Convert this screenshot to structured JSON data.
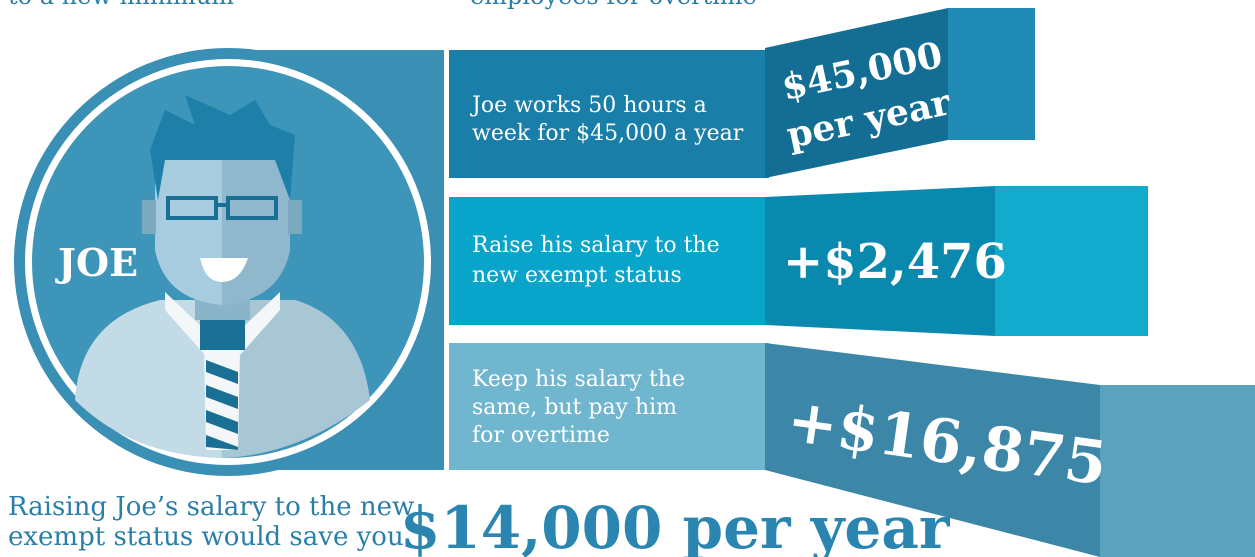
{
  "header": {
    "left_fragment": "to a new minimum",
    "center_fragment": "employees for overtime"
  },
  "person": {
    "name": "JOE"
  },
  "rows": [
    {
      "description": [
        "Joe works 50 hours a",
        "week for $45,000 a year"
      ],
      "amount": [
        "$45,000",
        "per year"
      ]
    },
    {
      "description": [
        "Raise his salary to the",
        "new exempt status"
      ],
      "amount": [
        "+$2,476"
      ]
    },
    {
      "description": [
        "Keep his salary the",
        "same, but pay him",
        "for overtime"
      ],
      "amount": [
        "+$16,875"
      ]
    }
  ],
  "footer": {
    "text": [
      "Raising Joe’s salary to the new",
      "exempt status would save you"
    ],
    "savings": "$14,000 per year"
  }
}
